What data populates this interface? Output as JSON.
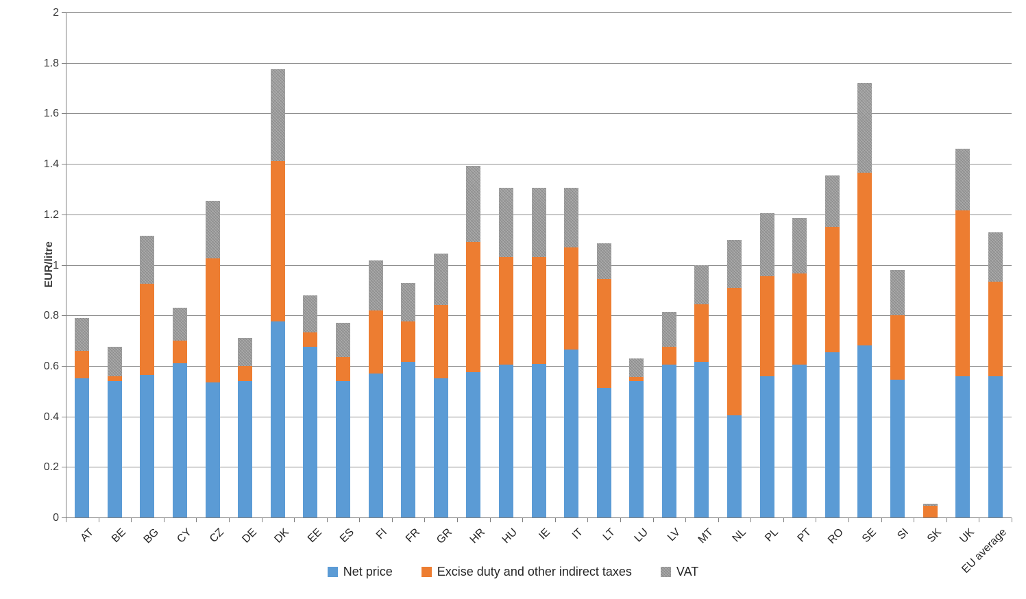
{
  "chart_data": {
    "type": "bar",
    "stacked": true,
    "title": "",
    "ylabel": "EUR/litre",
    "xlabel": "",
    "ylim": [
      0,
      2
    ],
    "ytick_step": 0.2,
    "ytick_labels": [
      "0",
      "0.2",
      "0.4",
      "0.6",
      "0.8",
      "1",
      "1.2",
      "1.4",
      "1.6",
      "1.8",
      "2"
    ],
    "grid": true,
    "legend_position": "bottom",
    "categories": [
      "AT",
      "BE",
      "BG",
      "CY",
      "CZ",
      "DE",
      "DK",
      "EE",
      "ES",
      "FI",
      "FR",
      "GR",
      "HR",
      "HU",
      "IE",
      "IT",
      "LT",
      "LU",
      "LV",
      "MT",
      "NL",
      "PL",
      "PT",
      "RO",
      "SE",
      "SI",
      "SK",
      "UK",
      "EU average"
    ],
    "series": [
      {
        "name": "Net price",
        "color": "#5B9BD5",
        "pattern": "solid",
        "values": [
          0.55,
          0.54,
          0.565,
          0.61,
          0.535,
          0.54,
          0.775,
          0.675,
          0.54,
          0.57,
          0.615,
          0.55,
          0.575,
          0.605,
          0.608,
          0.665,
          0.513,
          0.54,
          0.605,
          0.615,
          0.405,
          0.56,
          0.605,
          0.655,
          0.68,
          0.545,
          0.0,
          0.56,
          0.56
        ]
      },
      {
        "name": "Excise duty and other indirect taxes",
        "color": "#ED7D31",
        "pattern": "solid",
        "values": [
          0.11,
          0.02,
          0.36,
          0.09,
          0.49,
          0.06,
          0.635,
          0.058,
          0.095,
          0.25,
          0.16,
          0.29,
          0.515,
          0.425,
          0.422,
          0.405,
          0.432,
          0.015,
          0.07,
          0.23,
          0.505,
          0.395,
          0.36,
          0.495,
          0.685,
          0.255,
          0.045,
          0.655,
          0.373
        ]
      },
      {
        "name": "VAT",
        "color": "#A6A6A6",
        "pattern": "diagonal-hatch",
        "values": [
          0.13,
          0.115,
          0.19,
          0.13,
          0.23,
          0.11,
          0.365,
          0.147,
          0.135,
          0.198,
          0.153,
          0.205,
          0.303,
          0.275,
          0.275,
          0.235,
          0.14,
          0.075,
          0.14,
          0.155,
          0.188,
          0.25,
          0.22,
          0.205,
          0.355,
          0.18,
          0.01,
          0.245,
          0.197
        ]
      }
    ],
    "totals": [
      0.79,
      0.675,
      1.115,
      0.83,
      1.255,
      0.71,
      1.775,
      0.88,
      0.77,
      1.018,
      0.928,
      1.045,
      1.393,
      1.305,
      1.305,
      1.305,
      1.085,
      0.63,
      0.815,
      1.0,
      1.098,
      1.205,
      1.185,
      1.355,
      1.72,
      0.98,
      0.055,
      1.46,
      1.13
    ]
  },
  "colors": {
    "net_price": "#5B9BD5",
    "excise": "#ED7D31",
    "vat": "#A6A6A6",
    "gridline": "#8c8c8c",
    "axis": "#7f7f7f",
    "text": "#262626",
    "background": "#FFFFFF"
  }
}
